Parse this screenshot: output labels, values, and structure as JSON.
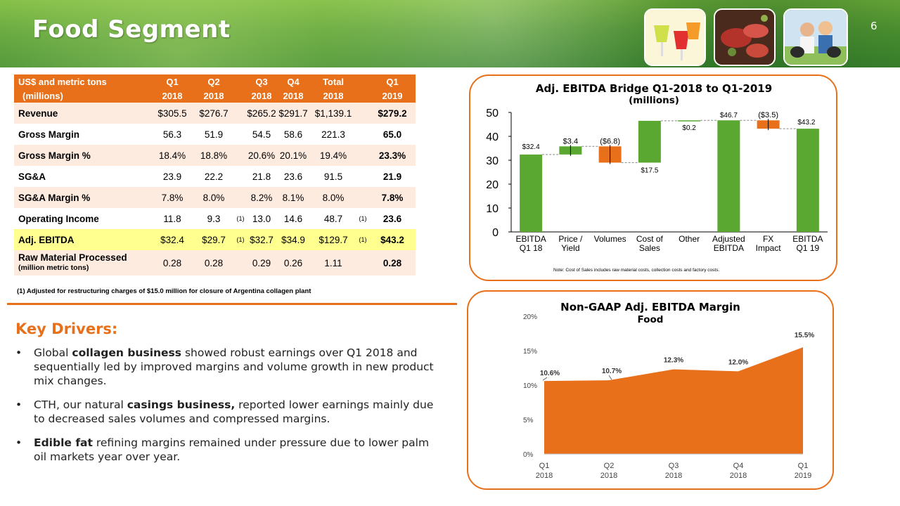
{
  "header": {
    "title": "Food Segment",
    "page_number": "6"
  },
  "table": {
    "head_line1": [
      "US$ and metric tons",
      "Q1",
      "Q2",
      "",
      "Q3",
      "Q4",
      "Total",
      "",
      "Q1"
    ],
    "head_line2": [
      "(millions)",
      "2018",
      "2018",
      "",
      "2018",
      "2018",
      "2018",
      "",
      "2019"
    ],
    "rows": [
      {
        "label": "Revenue",
        "cells": [
          "$305.5",
          "$276.7",
          "",
          "$265.2",
          "$291.7",
          "$1,139.1",
          "",
          "$279.2"
        ]
      },
      {
        "label": "Gross Margin",
        "cells": [
          "56.3",
          "51.9",
          "",
          "54.5",
          "58.6",
          "221.3",
          "",
          "65.0"
        ]
      },
      {
        "label": "Gross Margin %",
        "cells": [
          "18.4%",
          "18.8%",
          "",
          "20.6%",
          "20.1%",
          "19.4%",
          "",
          "23.3%"
        ]
      },
      {
        "label": "SG&A",
        "cells": [
          "23.9",
          "22.2",
          "",
          "21.8",
          "23.6",
          "91.5",
          "",
          "21.9"
        ]
      },
      {
        "label": "SG&A Margin %",
        "cells": [
          "7.8%",
          "8.0%",
          "",
          "8.2%",
          "8.1%",
          "8.0%",
          "",
          "7.8%"
        ]
      },
      {
        "label": "Operating Income",
        "cells": [
          "11.8",
          "9.3",
          "(1)",
          "13.0",
          "14.6",
          "48.7",
          "(1)",
          "23.6"
        ]
      },
      {
        "label": "Adj. EBITDA",
        "cells": [
          "$32.4",
          "$29.7",
          "(1)",
          "$32.7",
          "$34.9",
          "$129.7",
          "(1)",
          "$43.2"
        ]
      },
      {
        "label": "Raw Material Processed",
        "sublabel": "(million metric tons)",
        "cells": [
          "0.28",
          "0.28",
          "",
          "0.29",
          "0.26",
          "1.11",
          "",
          "0.28"
        ]
      }
    ],
    "footnote": "(1) Adjusted for restructuring charges of $15.0 million for closure of Argentina collagen plant"
  },
  "key_drivers": {
    "title": "Key Drivers:",
    "bullets": [
      {
        "pre": "Global ",
        "bold": "collagen business",
        "post": " showed robust earnings over Q1 2018 and sequentially led by improved margins and volume growth in new product mix changes."
      },
      {
        "pre": "CTH, our natural ",
        "bold": "casings business,",
        "post": " reported lower earnings mainly due to decreased sales volumes and compressed margins."
      },
      {
        "pre": "",
        "bold": "Edible fat",
        "post": " refining margins remained under pressure due to lower palm oil markets year over year."
      }
    ],
    "bullet_symbol": "•"
  },
  "chart_data": [
    {
      "type": "bar",
      "subtype": "waterfall",
      "title": "Adj. EBITDA Bridge Q1-2018 to Q1-2019",
      "subtitle": "(millions)",
      "categories": [
        [
          "EBITDA",
          "Q1 18"
        ],
        [
          "Price /",
          "Yield"
        ],
        [
          "Volumes",
          ""
        ],
        [
          "Cost of",
          "Sales"
        ],
        [
          "Other",
          ""
        ],
        [
          "Adjusted",
          "EBITDA"
        ],
        [
          "FX",
          "Impact"
        ],
        [
          "EBITDA",
          "Q1 19"
        ]
      ],
      "steps": [
        {
          "kind": "total",
          "value": 32.4,
          "label": "$32.4",
          "color": "#5aa832"
        },
        {
          "kind": "delta",
          "value": 3.4,
          "label": "$3.4",
          "color": "#5aa832"
        },
        {
          "kind": "delta",
          "value": -6.8,
          "label": "($6.8)",
          "color": "#e8701a"
        },
        {
          "kind": "delta",
          "value": 17.5,
          "label": "$17.5",
          "color": "#5aa832"
        },
        {
          "kind": "delta",
          "value": 0.2,
          "label": "$0.2",
          "color": "#5aa832"
        },
        {
          "kind": "total",
          "value": 46.7,
          "label": "$46.7",
          "color": "#5aa832"
        },
        {
          "kind": "delta",
          "value": -3.5,
          "label": "($3.5)",
          "color": "#e8701a"
        },
        {
          "kind": "total",
          "value": 43.2,
          "label": "$43.2",
          "color": "#5aa832"
        }
      ],
      "yticks": [
        0,
        10,
        20,
        30,
        40,
        50
      ],
      "ylim": [
        0,
        50
      ],
      "note": "Note: Cost of Sales includes raw material costs, collection costs and factory costs."
    },
    {
      "type": "area",
      "title": "Non-GAAP Adj. EBITDA Margin",
      "subtitle": "Food",
      "categories": [
        [
          "Q1",
          "2018"
        ],
        [
          "Q2",
          "2018"
        ],
        [
          "Q3",
          "2018"
        ],
        [
          "Q4",
          "2018"
        ],
        [
          "Q1",
          "2019"
        ]
      ],
      "values": [
        10.6,
        10.7,
        12.3,
        12.0,
        15.5
      ],
      "labels": [
        "10.6%",
        "10.7%",
        "12.3%",
        "12.0%",
        "15.5%"
      ],
      "yticks": [
        "0%",
        "5%",
        "10%",
        "15%",
        "20%"
      ],
      "ylim": [
        0,
        20
      ],
      "color": "#e8701a"
    }
  ],
  "colors": {
    "accent": "#e8701a",
    "green": "#5aa832",
    "highlight": "#ffff8f",
    "row_alt": "#fdebe0"
  }
}
